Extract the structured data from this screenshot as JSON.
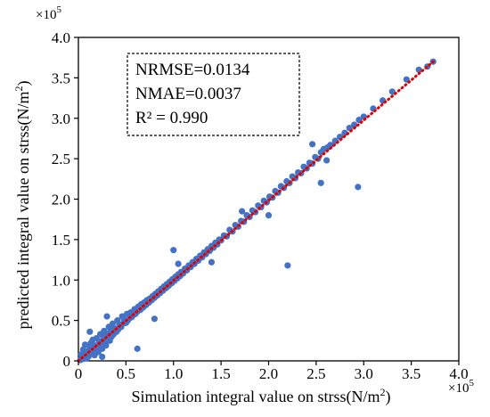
{
  "chart_data": {
    "type": "scatter",
    "xlabel": "Simulation integral value on strss(N/m",
    "xlabel_sup": "2",
    "xlabel_end": ")",
    "ylabel": "predicted integral value on strss(N/m",
    "ylabel_sup": "2",
    "ylabel_end": ")",
    "x_exponent_base": "×10",
    "x_exponent_power": "5",
    "y_exponent_base": "×10",
    "y_exponent_power": "5",
    "xlim": [
      0,
      400000
    ],
    "ylim": [
      0,
      400000
    ],
    "x_ticks": [
      0,
      50000,
      100000,
      150000,
      200000,
      250000,
      300000,
      350000,
      400000
    ],
    "y_ticks": [
      0,
      50000,
      100000,
      150000,
      200000,
      250000,
      300000,
      350000,
      400000
    ],
    "x_tick_labels": [
      "0",
      "0.5",
      "1.0",
      "1.5",
      "2.0",
      "2.5",
      "3.0",
      "3.5",
      "4.0"
    ],
    "y_tick_labels": [
      "0",
      "0.5",
      "1.0",
      "1.5",
      "2.0",
      "2.5",
      "3.0",
      "3.5",
      "4.0"
    ],
    "grid": false,
    "annotations": [
      "NRMSE=0.0134",
      "NMAE=0.0037",
      "R² = 0.990"
    ],
    "colors": {
      "points": "#4472C4",
      "trendline": "#E00000"
    },
    "series": [
      {
        "name": "",
        "points": [
          [
            2000,
            1000
          ],
          [
            3000,
            8000
          ],
          [
            4000,
            2000
          ],
          [
            5000,
            14000
          ],
          [
            6000,
            4000
          ],
          [
            7000,
            20000
          ],
          [
            8000,
            9000
          ],
          [
            9000,
            3000
          ],
          [
            10000,
            12000
          ],
          [
            11000,
            6000
          ],
          [
            12000,
            17000
          ],
          [
            13000,
            22000
          ],
          [
            14000,
            10000
          ],
          [
            15000,
            26000
          ],
          [
            16000,
            14000
          ],
          [
            17000,
            7000
          ],
          [
            18000,
            19000
          ],
          [
            19000,
            28000
          ],
          [
            20000,
            17000
          ],
          [
            21000,
            11000
          ],
          [
            22000,
            24000
          ],
          [
            23000,
            33000
          ],
          [
            24000,
            20000
          ],
          [
            25000,
            15000
          ],
          [
            26000,
            30000
          ],
          [
            27000,
            37000
          ],
          [
            28000,
            24000
          ],
          [
            29000,
            19000
          ],
          [
            30000,
            34000
          ],
          [
            31000,
            28000
          ],
          [
            32000,
            42000
          ],
          [
            33000,
            25000
          ],
          [
            34000,
            36000
          ],
          [
            35000,
            30000
          ],
          [
            36000,
            46000
          ],
          [
            37000,
            33000
          ],
          [
            38000,
            40000
          ],
          [
            40000,
            36000
          ],
          [
            41000,
            50000
          ],
          [
            42000,
            39000
          ],
          [
            43000,
            45000
          ],
          [
            45000,
            42000
          ],
          [
            46000,
            55000
          ],
          [
            47000,
            46000
          ],
          [
            48000,
            51000
          ],
          [
            50000,
            47000
          ],
          [
            51000,
            58000
          ],
          [
            52000,
            50000
          ],
          [
            54000,
            53000
          ],
          [
            55000,
            60000
          ],
          [
            56000,
            54000
          ],
          [
            58000,
            57000
          ],
          [
            59000,
            64000
          ],
          [
            60000,
            58000
          ],
          [
            62000,
            61000
          ],
          [
            63000,
            67000
          ],
          [
            65000,
            63000
          ],
          [
            66000,
            70000
          ],
          [
            68000,
            66000
          ],
          [
            69000,
            72000
          ],
          [
            71000,
            69000
          ],
          [
            72000,
            75000
          ],
          [
            74000,
            72000
          ],
          [
            75000,
            77000
          ],
          [
            77000,
            75000
          ],
          [
            78000,
            80000
          ],
          [
            80000,
            78000
          ],
          [
            81000,
            83000
          ],
          [
            83000,
            81000
          ],
          [
            84000,
            86000
          ],
          [
            86000,
            84000
          ],
          [
            87000,
            89000
          ],
          [
            89000,
            87000
          ],
          [
            90000,
            92000
          ],
          [
            92000,
            90000
          ],
          [
            93000,
            95000
          ],
          [
            95000,
            93000
          ],
          [
            96000,
            98000
          ],
          [
            98000,
            96000
          ],
          [
            99000,
            101000
          ],
          [
            101000,
            99000
          ],
          [
            102000,
            104000
          ],
          [
            104000,
            102000
          ],
          [
            105000,
            107000
          ],
          [
            107000,
            105000
          ],
          [
            108000,
            110000
          ],
          [
            110000,
            108000
          ],
          [
            112000,
            114000
          ],
          [
            114000,
            112000
          ],
          [
            116000,
            118000
          ],
          [
            118000,
            116000
          ],
          [
            120000,
            122000
          ],
          [
            122000,
            120000
          ],
          [
            124000,
            126000
          ],
          [
            126000,
            124000
          ],
          [
            128000,
            130000
          ],
          [
            130000,
            128000
          ],
          [
            132000,
            134000
          ],
          [
            134000,
            132000
          ],
          [
            136000,
            138000
          ],
          [
            138000,
            136000
          ],
          [
            140000,
            142000
          ],
          [
            142000,
            140000
          ],
          [
            144000,
            146000
          ],
          [
            146000,
            144000
          ],
          [
            148000,
            150000
          ],
          [
            150000,
            149000
          ],
          [
            153000,
            155000
          ],
          [
            156000,
            154000
          ],
          [
            159000,
            162000
          ],
          [
            162000,
            160000
          ],
          [
            165000,
            168000
          ],
          [
            168000,
            166000
          ],
          [
            171000,
            173000
          ],
          [
            174000,
            172000
          ],
          [
            177000,
            180000
          ],
          [
            180000,
            178000
          ],
          [
            183000,
            186000
          ],
          [
            186000,
            184000
          ],
          [
            189000,
            192000
          ],
          [
            192000,
            190000
          ],
          [
            195000,
            198000
          ],
          [
            198000,
            196000
          ],
          [
            201000,
            203000
          ],
          [
            204000,
            202000
          ],
          [
            207000,
            210000
          ],
          [
            210000,
            208000
          ],
          [
            213000,
            216000
          ],
          [
            216000,
            214000
          ],
          [
            219000,
            222000
          ],
          [
            222000,
            220000
          ],
          [
            225000,
            228000
          ],
          [
            228000,
            226000
          ],
          [
            231000,
            233000
          ],
          [
            234000,
            232000
          ],
          [
            237000,
            240000
          ],
          [
            240000,
            238000
          ],
          [
            243000,
            245000
          ],
          [
            246000,
            244000
          ],
          [
            249000,
            252000
          ],
          [
            252000,
            250000
          ],
          [
            255000,
            258000
          ],
          [
            258000,
            262000
          ],
          [
            262000,
            264000
          ],
          [
            265000,
            267000
          ],
          [
            270000,
            272000
          ],
          [
            275000,
            277000
          ],
          [
            280000,
            282000
          ],
          [
            285000,
            288000
          ],
          [
            290000,
            292000
          ],
          [
            295000,
            298000
          ],
          [
            300000,
            302000
          ],
          [
            310000,
            312000
          ],
          [
            320000,
            322000
          ],
          [
            330000,
            333000
          ],
          [
            345000,
            348000
          ],
          [
            358000,
            360000
          ],
          [
            367000,
            364000
          ],
          [
            373000,
            370000
          ],
          [
            12000,
            36000
          ],
          [
            25000,
            5000
          ],
          [
            30000,
            55000
          ],
          [
            100000,
            137000
          ],
          [
            105000,
            120000
          ],
          [
            62000,
            15000
          ],
          [
            80000,
            52000
          ],
          [
            220000,
            118000
          ],
          [
            255000,
            220000
          ],
          [
            294000,
            215000
          ],
          [
            140000,
            122000
          ],
          [
            172000,
            185000
          ],
          [
            246000,
            268000
          ],
          [
            261000,
            248000
          ],
          [
            200000,
            180000
          ]
        ]
      }
    ],
    "trendline": {
      "type": "linear",
      "x": [
        0,
        375000
      ],
      "y": [
        0,
        372000
      ]
    }
  }
}
